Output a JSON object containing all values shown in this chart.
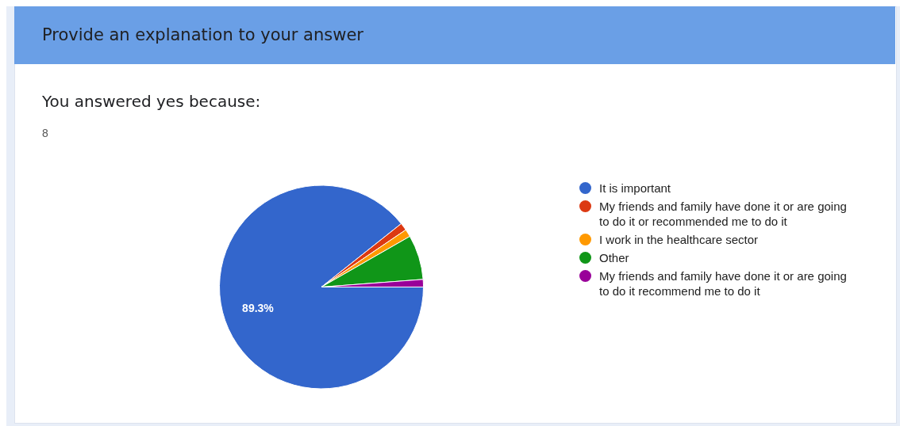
{
  "chart_data": {
    "type": "pie",
    "title": "Provide an explanation to your answer",
    "subtitle": "You answered yes because:",
    "annotations": [
      "8"
    ],
    "categories": [
      "It is important",
      "My friends and family have done it or are going to do it or recommended me to do it",
      "I work in the healthcare sector",
      "Other",
      "My friends and family have done it or are going to do it recommend me to do it"
    ],
    "values": [
      89.3,
      1.2,
      1.2,
      7.1,
      1.2
    ],
    "colors": [
      "#3366cc",
      "#dc3912",
      "#ff9900",
      "#109618",
      "#990099"
    ],
    "value_labels": [
      "89.3%",
      null,
      null,
      null,
      null
    ],
    "legend": "right"
  }
}
